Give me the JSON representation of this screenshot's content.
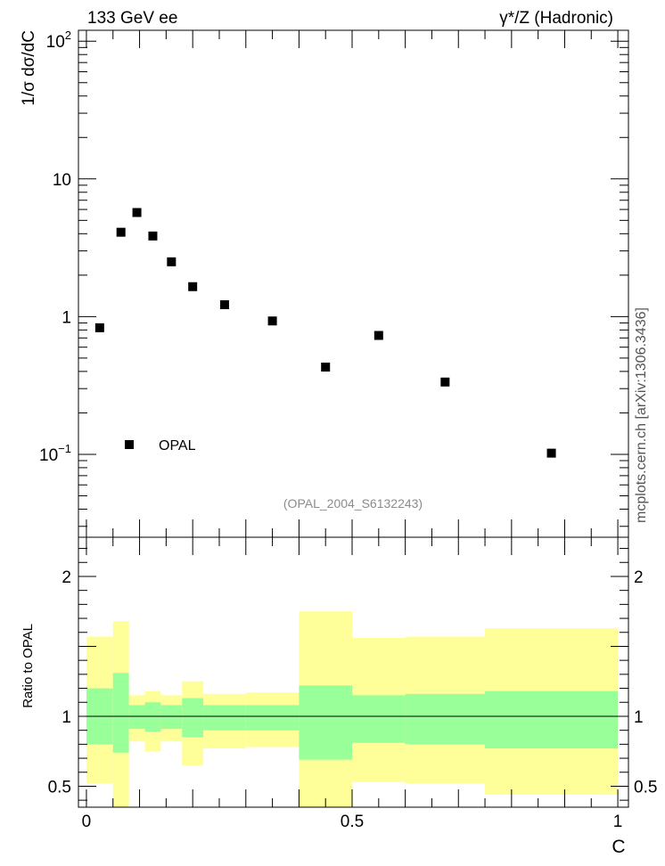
{
  "header": {
    "left": "133 GeV ee",
    "right": "γ*/Z (Hadronic)"
  },
  "watermark": "mcplots.cern.ch [arXiv:1306.3436]",
  "chart_data": [
    {
      "type": "scatter",
      "panel": "main",
      "ylabel": "1/σ dσ/dC",
      "yscale": "log",
      "ylim": [
        0.025,
        120
      ],
      "xlim": [
        -0.015,
        1.02
      ],
      "y_tick_labels": [
        "10^-1",
        "1",
        "10",
        "10^2"
      ],
      "annotation": "(OPAL_2004_S6132243)",
      "legend": {
        "position": "bottom-left",
        "entries": [
          "OPAL"
        ]
      },
      "series": [
        {
          "name": "OPAL",
          "marker": "square",
          "color": "#000000",
          "x": [
            0.025,
            0.065,
            0.095,
            0.125,
            0.16,
            0.2,
            0.26,
            0.35,
            0.45,
            0.55,
            0.675,
            0.875
          ],
          "y": [
            0.83,
            4.1,
            5.7,
            3.85,
            2.5,
            1.65,
            1.22,
            0.93,
            0.43,
            0.73,
            0.335,
            0.102
          ]
        }
      ]
    },
    {
      "type": "area",
      "panel": "ratio",
      "xlabel": "C",
      "ylabel": "Ratio to OPAL",
      "ylim": [
        0.35,
        2.28
      ],
      "xlim": [
        -0.015,
        1.02
      ],
      "y_tick_labels": [
        "0.5",
        "1",
        "2"
      ],
      "x_tick_labels": [
        "0",
        "0.5",
        "1"
      ],
      "reference_line": 1,
      "colors": {
        "inner": "#99ff99",
        "outer": "#ffff99"
      },
      "bins": [
        {
          "x0": 0.0,
          "x1": 0.05,
          "inner": [
            0.8,
            1.2
          ],
          "outer": [
            0.52,
            1.57
          ]
        },
        {
          "x0": 0.05,
          "x1": 0.08,
          "inner": [
            0.74,
            1.31
          ],
          "outer": [
            0.35,
            1.68
          ]
        },
        {
          "x0": 0.08,
          "x1": 0.11,
          "inner": [
            0.91,
            1.08
          ],
          "outer": [
            0.82,
            1.15
          ]
        },
        {
          "x0": 0.11,
          "x1": 0.14,
          "inner": [
            0.89,
            1.1
          ],
          "outer": [
            0.75,
            1.18
          ]
        },
        {
          "x0": 0.14,
          "x1": 0.18,
          "inner": [
            0.91,
            1.08
          ],
          "outer": [
            0.82,
            1.15
          ]
        },
        {
          "x0": 0.18,
          "x1": 0.22,
          "inner": [
            0.85,
            1.13
          ],
          "outer": [
            0.65,
            1.25
          ]
        },
        {
          "x0": 0.22,
          "x1": 0.3,
          "inner": [
            0.9,
            1.08
          ],
          "outer": [
            0.77,
            1.16
          ]
        },
        {
          "x0": 0.3,
          "x1": 0.4,
          "inner": [
            0.9,
            1.08
          ],
          "outer": [
            0.78,
            1.17
          ]
        },
        {
          "x0": 0.4,
          "x1": 0.5,
          "inner": [
            0.69,
            1.22
          ],
          "outer": [
            0.35,
            1.75
          ]
        },
        {
          "x0": 0.5,
          "x1": 0.6,
          "inner": [
            0.81,
            1.15
          ],
          "outer": [
            0.53,
            1.56
          ]
        },
        {
          "x0": 0.6,
          "x1": 0.75,
          "inner": [
            0.8,
            1.16
          ],
          "outer": [
            0.52,
            1.57
          ]
        },
        {
          "x0": 0.75,
          "x1": 1.0,
          "inner": [
            0.77,
            1.18
          ],
          "outer": [
            0.44,
            1.63
          ]
        }
      ]
    }
  ]
}
